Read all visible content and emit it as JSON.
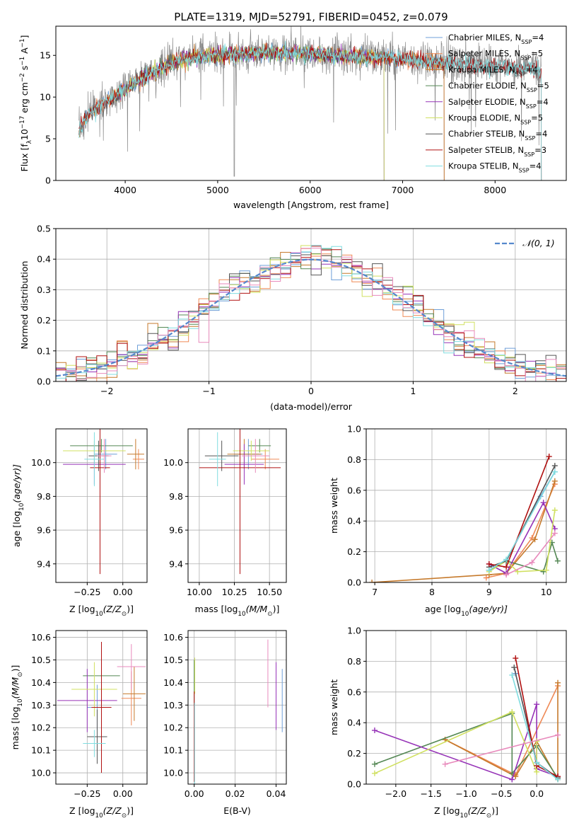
{
  "colors": {
    "chabrier_miles": "#6f9fd8",
    "salpeter_miles": "#ef8a56",
    "kroupa_miles": "#c67a2c",
    "chabrier_elodie": "#558855",
    "salpeter_elodie": "#9633b7",
    "kroupa_elodie": "#d0e060",
    "chabrier_stelib": "#555555",
    "salpeter_stelib": "#b01010",
    "kroupa_stelib": "#80dde0",
    "data": "#888888",
    "pink": "#e88abc",
    "lime": "#c8ec3c",
    "normal": "#5588cc"
  },
  "chart_data": [
    {
      "id": "spectrum",
      "type": "line",
      "title": "PLATE=1319, MJD=52791, FIBERID=0452, z=0.079",
      "xlabel": "wavelength [Angstrom, rest frame]",
      "ylabel": "Flux [f",
      "ylabel_sub": "λ",
      "ylabel_mid": "10",
      "ylabel_sup": "−17",
      "ylabel_tail": " erg cm",
      "ylabel_sup2": "−2",
      "ylabel_tail2": " s",
      "ylabel_sup3": "−1",
      "ylabel_tail3": " A",
      "ylabel_sup4": "−1",
      "ylabel_end": "]",
      "xlim": [
        3250,
        8770
      ],
      "ylim": [
        0,
        18.5
      ],
      "xticks": [
        4000,
        5000,
        6000,
        7000,
        8000
      ],
      "yticks": [
        0,
        5,
        10,
        15
      ],
      "continuum": [
        [
          3500,
          6
        ],
        [
          3600,
          8
        ],
        [
          3800,
          9.5
        ],
        [
          4000,
          11
        ],
        [
          4200,
          12.5
        ],
        [
          4500,
          14.2
        ],
        [
          4800,
          15
        ],
        [
          5200,
          15.2
        ],
        [
          5600,
          15.4
        ],
        [
          6000,
          15.3
        ],
        [
          6400,
          15
        ],
        [
          6800,
          14.8
        ],
        [
          7200,
          14.4
        ],
        [
          7500,
          14.1
        ],
        [
          8000,
          13.8
        ],
        [
          8500,
          13.4
        ]
      ],
      "legend": [
        {
          "name": "Chabrier MILES, N",
          "sub": "SSP",
          "val": "=4",
          "color": "#6f9fd8"
        },
        {
          "name": "Salpeter MILES, N",
          "sub": "SSP",
          "val": "=5",
          "color": "#ef8a56"
        },
        {
          "name": "Kroupa MILES, N",
          "sub": "SSP",
          "val": "=4",
          "color": "#c67a2c"
        },
        {
          "name": "Chabrier ELODIE, N",
          "sub": "SSP",
          "val": "=5",
          "color": "#558855"
        },
        {
          "name": "Salpeter ELODIE, N",
          "sub": "SSP",
          "val": "=4",
          "color": "#9633b7"
        },
        {
          "name": "Kroupa ELODIE, N",
          "sub": "SSP",
          "val": "=5",
          "color": "#d0e060"
        },
        {
          "name": "Chabrier STELIB, N",
          "sub": "SSP",
          "val": "=4",
          "color": "#555555"
        },
        {
          "name": "Salpeter STELIB, N",
          "sub": "SSP",
          "val": "=3",
          "color": "#b01010"
        },
        {
          "name": "Kroupa STELIB, N",
          "sub": "SSP",
          "val": "=4",
          "color": "#80dde0"
        }
      ]
    },
    {
      "id": "residuals",
      "type": "line",
      "xlabel": "(data-model)/error",
      "ylabel": "Normed distribution",
      "xlim": [
        -2.5,
        2.5
      ],
      "ylim": [
        0,
        0.5
      ],
      "xticks": [
        -2,
        -1,
        0,
        1,
        2
      ],
      "xticklabels": [
        "−2",
        "−1",
        "0",
        "1",
        "2"
      ],
      "yticks": [
        0,
        0.1,
        0.2,
        0.3,
        0.4,
        0.5
      ],
      "yticklabels": [
        "0.0",
        "0.1",
        "0.2",
        "0.3",
        "0.4",
        "0.5"
      ],
      "legend": "𝒩(0, 1)",
      "bin_width": 0.1
    },
    {
      "id": "age_Z",
      "type": "scatter",
      "xlabel": "Z [log",
      "xlabel_sub": "10",
      "xlabel_tail": "(Z/Z",
      "xlabel_sub2": "⊙",
      "xlabel_end": ")]",
      "ylabel": "age  [log",
      "ylabel_sub": "10",
      "ylabel_tail": "(age/yr)]",
      "xlim": [
        -0.47,
        0.17
      ],
      "ylim": [
        9.29,
        10.2
      ],
      "xticks": [
        -0.25,
        0
      ],
      "xticklabels": [
        "−0.25",
        "0.00"
      ],
      "yticks": [
        9.4,
        9.6,
        9.8,
        10.0
      ],
      "yticklabels": [
        "9.4",
        "9.6",
        "9.8",
        "10.0"
      ],
      "points": [
        {
          "x": -0.12,
          "y": 10.05,
          "xerr": 0.08,
          "yerr": 0.09,
          "c": "#6f9fd8"
        },
        {
          "x": 0.11,
          "y": 10.02,
          "xerr": 0.04,
          "yerr": 0.06,
          "c": "#ef8a56"
        },
        {
          "x": 0.09,
          "y": 10.05,
          "xerr": 0.06,
          "yerr": 0.09,
          "c": "#c67a2c"
        },
        {
          "x": -0.15,
          "y": 10.1,
          "xerr": 0.22,
          "yerr": 0.04,
          "c": "#558855"
        },
        {
          "x": -0.2,
          "y": 9.99,
          "xerr": 0.22,
          "yerr": 0.12,
          "c": "#9633b7"
        },
        {
          "x": -0.2,
          "y": 10.07,
          "xerr": 0.22,
          "yerr": 0.06,
          "c": "#d0e060"
        },
        {
          "x": -0.17,
          "y": 10.04,
          "xerr": 0.07,
          "yerr": 0.09,
          "c": "#555555"
        },
        {
          "x": -0.16,
          "y": 9.97,
          "xerr": 0.07,
          "yerr": 0.63,
          "c": "#b01010"
        },
        {
          "x": -0.2,
          "y": 10.02,
          "xerr": 0.07,
          "yerr": 0.16,
          "c": "#80dde0"
        },
        {
          "x": -0.13,
          "y": 10.04,
          "xerr": 0.05,
          "yerr": 0.1,
          "c": "#e88abc"
        }
      ]
    },
    {
      "id": "age_mass",
      "type": "scatter",
      "xlabel": "mass [log",
      "xlabel_sub": "10",
      "xlabel_tail": "(M/M",
      "xlabel_sub2": "⊙",
      "xlabel_end": ")]",
      "xlim": [
        9.92,
        10.62
      ],
      "ylim": [
        9.29,
        10.2
      ],
      "xticks": [
        10,
        10.25,
        10.5
      ],
      "xticklabels": [
        "10.00",
        "10.25",
        "10.50"
      ],
      "yticks": [
        9.4,
        9.6,
        9.8,
        10.0
      ],
      "yticklabels": [
        "9.4",
        "9.6",
        "9.8",
        "10.0"
      ],
      "points": [
        {
          "x": 10.35,
          "y": 10.05,
          "xerr": 0.1,
          "yerr": 0.09,
          "c": "#6f9fd8"
        },
        {
          "x": 10.47,
          "y": 10.02,
          "xerr": 0.1,
          "yerr": 0.06,
          "c": "#ef8a56"
        },
        {
          "x": 10.32,
          "y": 10.05,
          "xerr": 0.12,
          "yerr": 0.09,
          "c": "#c67a2c"
        },
        {
          "x": 10.43,
          "y": 10.1,
          "xerr": 0.08,
          "yerr": 0.04,
          "c": "#558855"
        },
        {
          "x": 10.32,
          "y": 9.99,
          "xerr": 0.14,
          "yerr": 0.12,
          "c": "#9633b7"
        },
        {
          "x": 10.37,
          "y": 10.07,
          "xerr": 0.13,
          "yerr": 0.06,
          "c": "#d0e060"
        },
        {
          "x": 10.16,
          "y": 10.04,
          "xerr": 0.12,
          "yerr": 0.09,
          "c": "#555555"
        },
        {
          "x": 10.29,
          "y": 9.97,
          "xerr": 0.29,
          "yerr": 0.63,
          "c": "#b01010"
        },
        {
          "x": 10.13,
          "y": 10.02,
          "xerr": 0.06,
          "yerr": 0.16,
          "c": "#80dde0"
        },
        {
          "x": 10.4,
          "y": 10.04,
          "xerr": 0.1,
          "yerr": 0.1,
          "c": "#e88abc"
        }
      ]
    },
    {
      "id": "mw_age",
      "type": "line",
      "xlabel": "age  [log",
      "xlabel_sub": "10",
      "xlabel_tail": "(age/yr)]",
      "ylabel": "mass weight",
      "xlim": [
        6.85,
        10.35
      ],
      "ylim": [
        0,
        1
      ],
      "xticks": [
        7,
        8,
        9,
        10
      ],
      "xticklabels": [
        "7",
        "8",
        "9",
        "10"
      ],
      "yticks": [
        0,
        0.2,
        0.4,
        0.6,
        0.8,
        1
      ],
      "yticklabels": [
        "0.0",
        "0.2",
        "0.4",
        "0.6",
        "0.8",
        "1.0"
      ],
      "series": [
        {
          "c": "#6f9fd8",
          "x": [
            9.0,
            9.3,
            9.9,
            10.15
          ],
          "y": [
            0.08,
            0.14,
            0.56,
            0.72
          ]
        },
        {
          "c": "#ef8a56",
          "x": [
            8.95,
            9.3,
            9.75,
            10.15
          ],
          "y": [
            0.03,
            0.06,
            0.29,
            0.64
          ]
        },
        {
          "c": "#c67a2c",
          "x": [
            6.95,
            9.0,
            9.3,
            9.8,
            10.15
          ],
          "y": [
            0.0,
            0.05,
            0.06,
            0.28,
            0.66
          ]
        },
        {
          "c": "#558855",
          "x": [
            9.0,
            9.3,
            9.95,
            10.1,
            10.2
          ],
          "y": [
            0.08,
            0.14,
            0.07,
            0.26,
            0.14
          ]
        },
        {
          "c": "#9633b7",
          "x": [
            9.0,
            9.3,
            9.95,
            10.15
          ],
          "y": [
            0.12,
            0.06,
            0.52,
            0.35
          ]
        },
        {
          "c": "#d0e060",
          "x": [
            9.0,
            9.3,
            9.5,
            10.0,
            10.15
          ],
          "y": [
            0.07,
            0.14,
            0.07,
            0.08,
            0.47
          ]
        },
        {
          "c": "#555555",
          "x": [
            9.0,
            9.3,
            10.15
          ],
          "y": [
            0.1,
            0.14,
            0.76
          ]
        },
        {
          "c": "#b01010",
          "x": [
            9.0,
            9.3,
            10.05
          ],
          "y": [
            0.12,
            0.1,
            0.82
          ]
        },
        {
          "c": "#80dde0",
          "x": [
            9.0,
            9.3,
            10.15
          ],
          "y": [
            0.08,
            0.15,
            0.72
          ]
        },
        {
          "c": "#e88abc",
          "x": [
            9.3,
            9.75,
            10.15
          ],
          "y": [
            0.05,
            0.13,
            0.32
          ]
        }
      ]
    },
    {
      "id": "mass_Z",
      "type": "scatter",
      "xlabel": "Z [log",
      "xlabel_sub": "10",
      "xlabel_tail": "(Z/Z",
      "xlabel_sub2": "⊙",
      "xlabel_end": ")]",
      "ylabel": "mass [log",
      "ylabel_sub": "10",
      "ylabel_tail": "(M/M",
      "ylabel_sub2": "⊙",
      "ylabel_end": ")]",
      "xlim": [
        -0.47,
        0.17
      ],
      "ylim": [
        9.95,
        10.63
      ],
      "xticks": [
        -0.25,
        0
      ],
      "xticklabels": [
        "−0.25",
        "0.00"
      ],
      "yticks": [
        10.0,
        10.1,
        10.2,
        10.3,
        10.4,
        10.5,
        10.6
      ],
      "yticklabels": [
        "10.0",
        "10.1",
        "10.2",
        "10.3",
        "10.4",
        "10.5",
        "10.6"
      ],
      "points": [
        {
          "x": -0.18,
          "y": 10.29,
          "xerr": 0.07,
          "yerr": 0.1,
          "c": "#6f9fd8"
        },
        {
          "x": 0.06,
          "y": 10.33,
          "xerr": 0.07,
          "yerr": 0.12,
          "c": "#ef8a56"
        },
        {
          "x": 0.08,
          "y": 10.35,
          "xerr": 0.08,
          "yerr": 0.12,
          "c": "#c67a2c"
        },
        {
          "x": -0.15,
          "y": 10.43,
          "xerr": 0.13,
          "yerr": 0.08,
          "c": "#558855"
        },
        {
          "x": -0.25,
          "y": 10.32,
          "xerr": 0.21,
          "yerr": 0.14,
          "c": "#9633b7"
        },
        {
          "x": -0.2,
          "y": 10.37,
          "xerr": 0.16,
          "yerr": 0.12,
          "c": "#d0e060"
        },
        {
          "x": -0.18,
          "y": 10.16,
          "xerr": 0.07,
          "yerr": 0.12,
          "c": "#555555"
        },
        {
          "x": -0.15,
          "y": 10.29,
          "xerr": 0.07,
          "yerr": 0.29,
          "c": "#b01010"
        },
        {
          "x": -0.2,
          "y": 10.13,
          "xerr": 0.08,
          "yerr": 0.06,
          "c": "#80dde0"
        },
        {
          "x": 0.06,
          "y": 10.47,
          "xerr": 0.1,
          "yerr": 0.1,
          "c": "#e88abc"
        }
      ]
    },
    {
      "id": "mass_ebv",
      "type": "scatter",
      "xlabel": "E(B-V)",
      "xlim": [
        -0.003,
        0.045
      ],
      "ylim": [
        9.95,
        10.63
      ],
      "xticks": [
        0,
        0.02,
        0.04
      ],
      "xticklabels": [
        "0.00",
        "0.02",
        "0.04"
      ],
      "yticks": [
        10.0,
        10.1,
        10.2,
        10.3,
        10.4,
        10.5,
        10.6
      ],
      "yticklabels": [
        "10.0",
        "10.1",
        "10.2",
        "10.3",
        "10.4",
        "10.5",
        "10.6"
      ],
      "points": [
        {
          "x": 0.043,
          "y": 10.32,
          "xerr": 0,
          "yerr": 0.14,
          "c": "#6f9fd8"
        },
        {
          "x": 0.036,
          "y": 10.44,
          "xerr": 0,
          "yerr": 0.15,
          "c": "#e88abc"
        },
        {
          "x": 0.04,
          "y": 10.34,
          "xerr": 0,
          "yerr": 0.15,
          "c": "#9633b7"
        },
        {
          "x": 0.0,
          "y": 10.4,
          "xerr": 0,
          "yerr": 0.1,
          "c": "#558855"
        },
        {
          "x": 0.0003,
          "y": 10.43,
          "xerr": 0,
          "yerr": 0.08,
          "c": "#d0e060"
        },
        {
          "x": 0.0,
          "y": 10.16,
          "xerr": 0,
          "yerr": 0.2,
          "c": "#b01010"
        },
        {
          "x": 0.0002,
          "y": 10.13,
          "xerr": 0,
          "yerr": 0.18,
          "c": "#80dde0"
        }
      ]
    },
    {
      "id": "mw_Z",
      "type": "line",
      "xlabel": "Z [log",
      "xlabel_sub": "10",
      "xlabel_tail": "(Z/Z",
      "xlabel_sub2": "⊙",
      "xlabel_end": ")]",
      "ylabel": "mass weight",
      "xlim": [
        -2.42,
        0.42
      ],
      "ylim": [
        0,
        1
      ],
      "xticks": [
        -2,
        -1.5,
        -1,
        -0.5,
        0
      ],
      "xticklabels": [
        "−2.0",
        "−1.5",
        "−1.0",
        "−0.5",
        "0.0"
      ],
      "yticks": [
        0,
        0.2,
        0.4,
        0.6,
        0.8,
        1
      ],
      "yticklabels": [
        "0.0",
        "0.2",
        "0.4",
        "0.6",
        "0.8",
        "1.0"
      ],
      "series": [
        {
          "c": "#6f9fd8",
          "x": [
            -0.3,
            0.0,
            0.3
          ],
          "y": [
            0.72,
            0.14,
            0.04
          ]
        },
        {
          "c": "#ef8a56",
          "x": [
            -1.3,
            -0.3,
            0.3
          ],
          "y": [
            0.29,
            0.06,
            0.64
          ]
        },
        {
          "c": "#c67a2c",
          "x": [
            -1.3,
            -0.3,
            0.0,
            0.3,
            0.3
          ],
          "y": [
            0.29,
            0.05,
            0.28,
            0.03,
            0.66
          ]
        },
        {
          "c": "#558855",
          "x": [
            -2.3,
            -0.35,
            -0.35,
            0.0,
            0.3
          ],
          "y": [
            0.13,
            0.46,
            0.07,
            0.25,
            0.04
          ]
        },
        {
          "c": "#9633b7",
          "x": [
            -2.3,
            -0.35,
            0.0,
            0.0,
            0.3
          ],
          "y": [
            0.35,
            0.03,
            0.52,
            0.1,
            0.05
          ]
        },
        {
          "c": "#d0e060",
          "x": [
            -2.3,
            -0.35,
            0.0,
            0.0
          ],
          "y": [
            0.07,
            0.47,
            0.08,
            0.28
          ]
        },
        {
          "c": "#555555",
          "x": [
            -0.32,
            0.0,
            0.3
          ],
          "y": [
            0.76,
            0.14,
            0.04
          ]
        },
        {
          "c": "#b01010",
          "x": [
            -0.3,
            0.0,
            0.3
          ],
          "y": [
            0.82,
            0.12,
            0.05
          ]
        },
        {
          "c": "#80dde0",
          "x": [
            -0.35,
            0.0,
            0.3
          ],
          "y": [
            0.71,
            0.14,
            0.03
          ]
        },
        {
          "c": "#e88abc",
          "x": [
            -1.3,
            0.3
          ],
          "y": [
            0.13,
            0.32
          ]
        }
      ]
    }
  ]
}
